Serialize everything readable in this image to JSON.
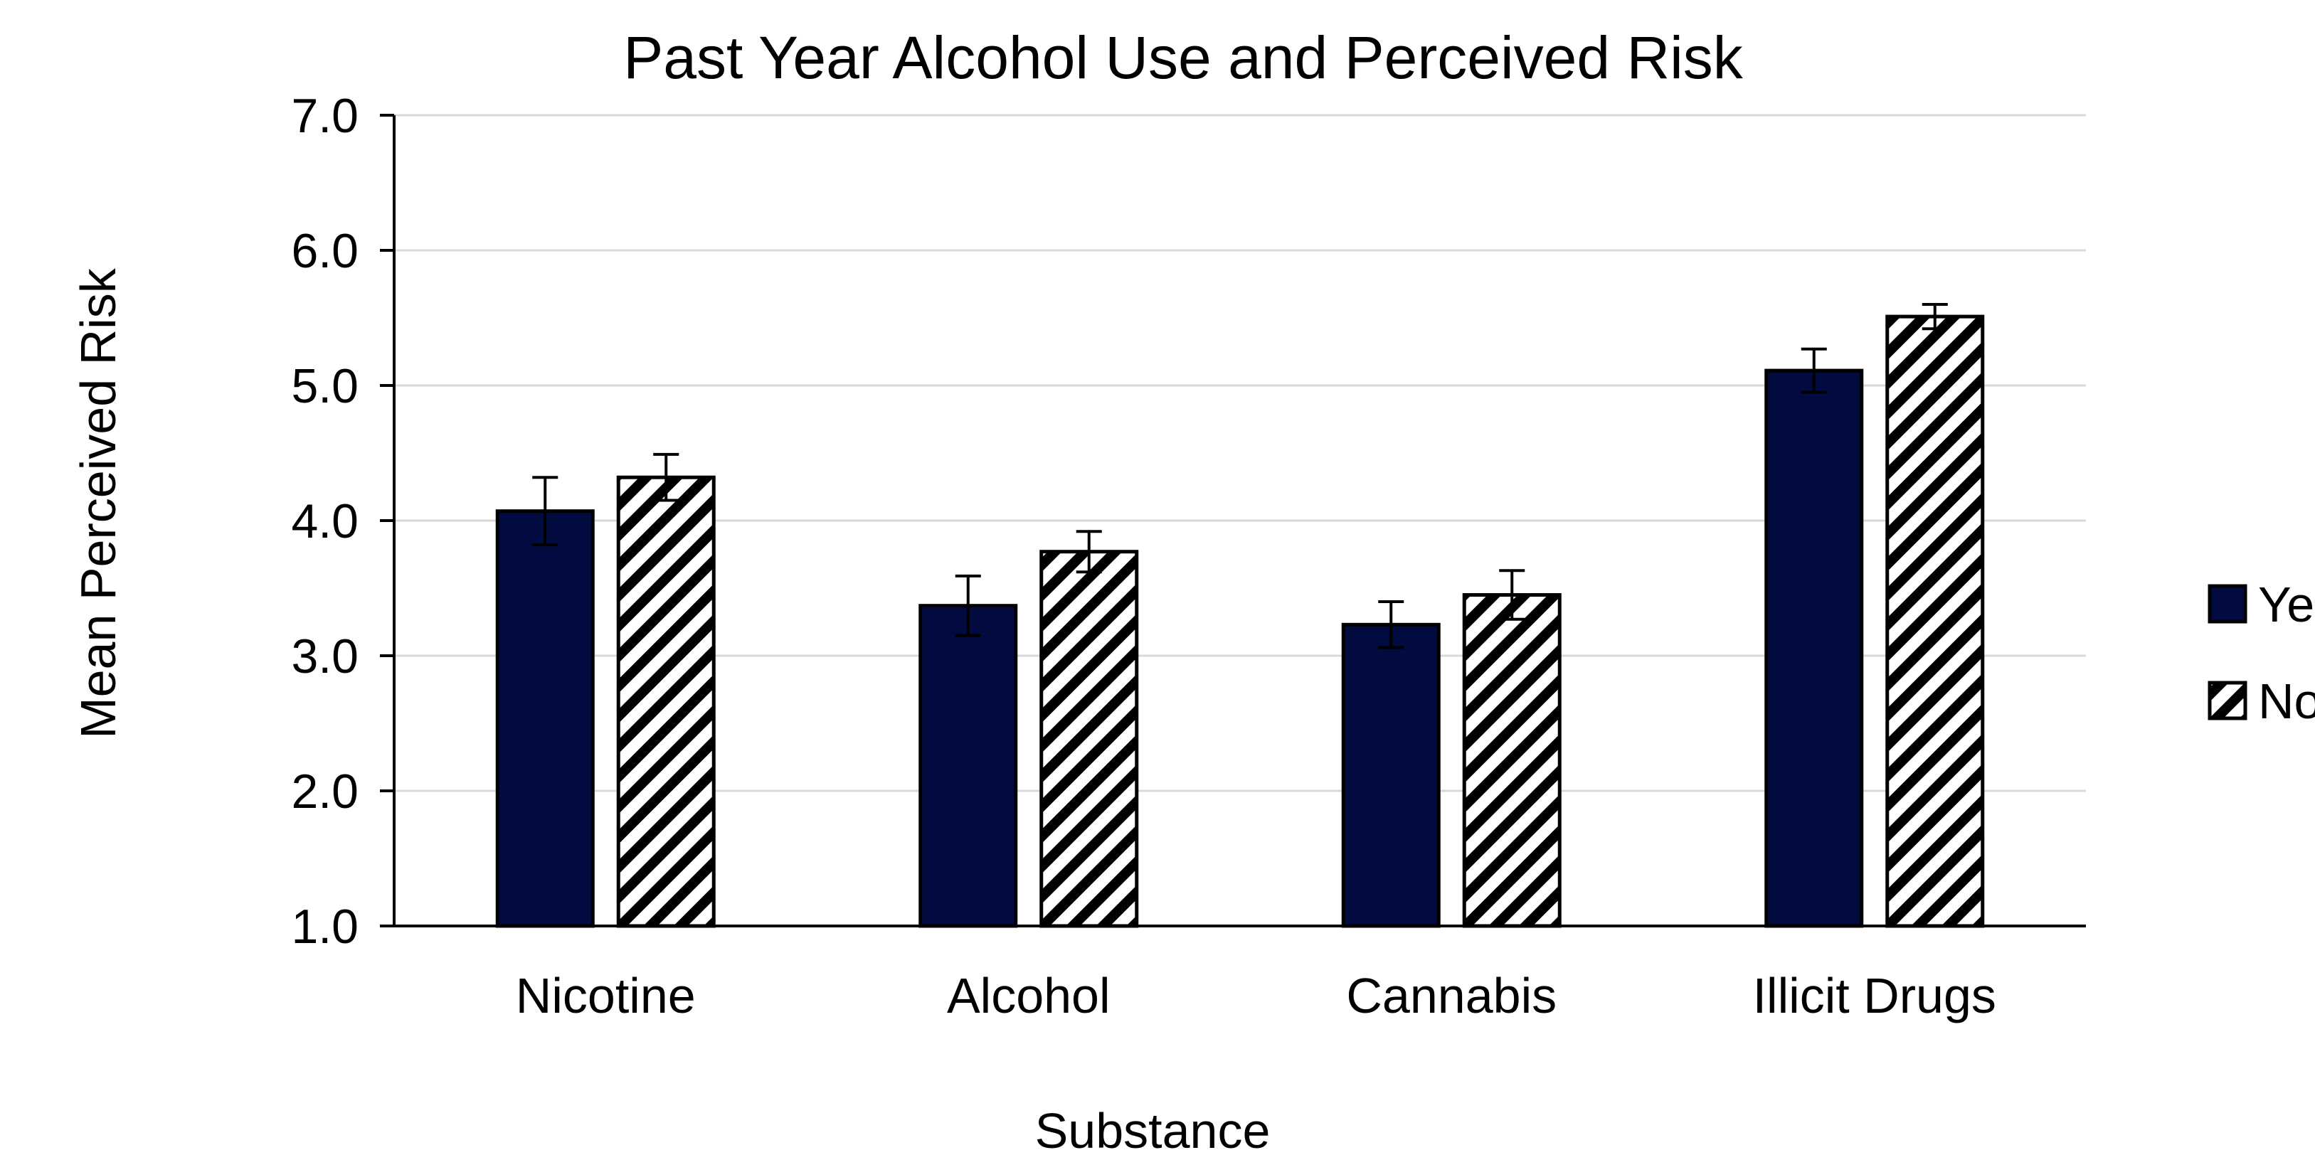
{
  "chart_data": {
    "type": "bar",
    "title": "Past Year Alcohol Use and Perceived Risk",
    "xlabel": "Substance",
    "ylabel": "Mean Perceived Risk",
    "categories": [
      "Nicotine",
      "Alcohol",
      "Cannabis",
      "Illicit Drugs"
    ],
    "ylim": [
      1.0,
      7.0
    ],
    "yticks": [
      "1.0",
      "2.0",
      "3.0",
      "4.0",
      "5.0",
      "6.0",
      "7.0"
    ],
    "grid": true,
    "legend_position": "right",
    "error_bars": true,
    "series": [
      {
        "name": "Ye",
        "fill": "solid",
        "color": "#020b3f",
        "values": [
          4.07,
          3.37,
          3.23,
          5.11
        ],
        "error": [
          0.25,
          0.22,
          0.17,
          0.16
        ]
      },
      {
        "name": "No",
        "fill": "diagonal-hatch",
        "color": "#000000",
        "values": [
          4.32,
          3.77,
          3.45,
          5.51
        ],
        "error": [
          0.17,
          0.15,
          0.18,
          0.09
        ]
      }
    ]
  }
}
